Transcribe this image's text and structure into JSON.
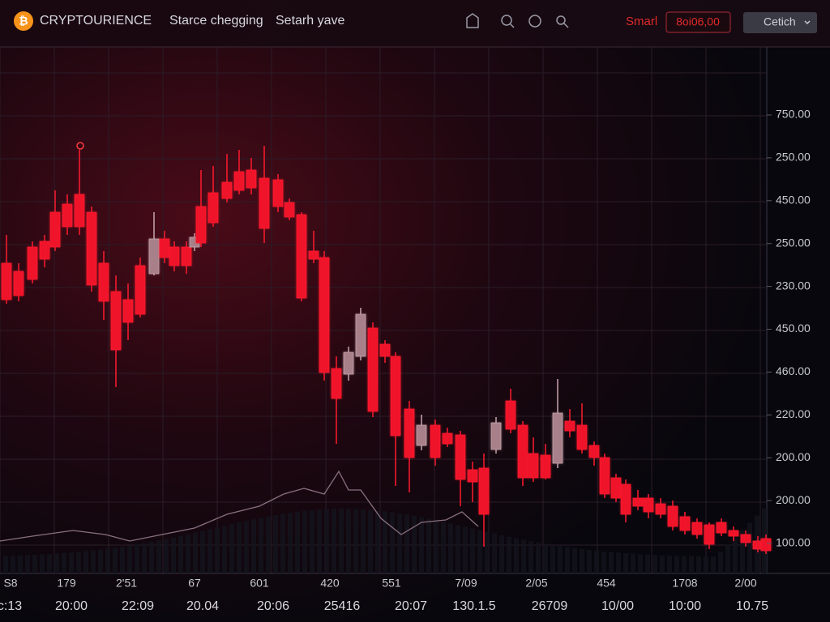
{
  "header": {
    "brand": "CRYPTOURIENCE",
    "nav": [
      "Starce chegging",
      "Setarh yave"
    ],
    "mode": "Smarl",
    "price_box": "8oi06,00",
    "dropdown": "Cetich"
  },
  "price_axis_labels": [
    "750.00",
    "250.00",
    "450.00",
    "250.00",
    "230.00",
    "450.00",
    "460.00",
    "220.00",
    "200.00",
    "200.00",
    "100.00"
  ],
  "time_axis": {
    "top_row": [
      "S8",
      "179",
      "2'51",
      "67",
      "601",
      "420",
      "551",
      "7/09",
      "2/05",
      "454",
      "1708",
      "2/00"
    ],
    "bottom_row": [
      "c:13",
      "20:00",
      "22:09",
      "20.04",
      "20:06",
      "25416",
      "20:07",
      "130.1.5",
      "26709",
      "10/00",
      "10:00",
      "10.75"
    ]
  }
}
